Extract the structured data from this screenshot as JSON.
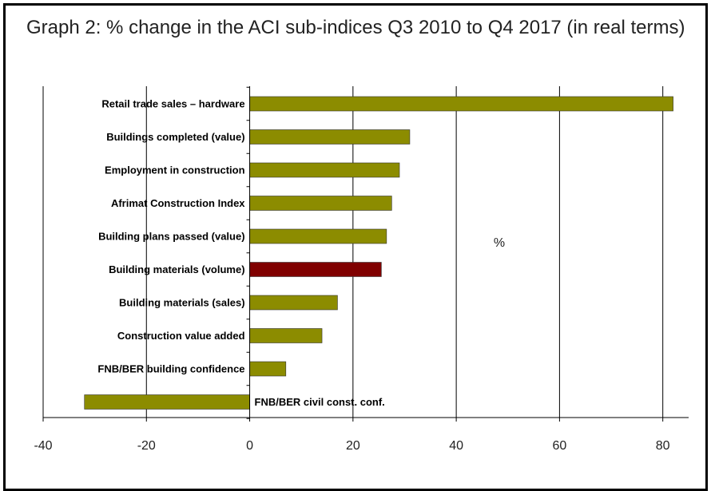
{
  "chart_data": {
    "type": "bar",
    "orientation": "horizontal",
    "title": "Graph 2: % change in the ACI sub-indices Q3 2010 to Q4 2017 (in real terms)",
    "unit_label": "%",
    "categories": [
      "Retail trade sales – hardware",
      "Buildings completed  (value)",
      "Employment in construction",
      "Afrimat Construction Index",
      "Building plans passed (value)",
      "Building materials (volume)",
      "Building materials (sales)",
      "Construction value added",
      "FNB/BER building confidence",
      "FNB/BER civil const. conf."
    ],
    "values": [
      82,
      31,
      29,
      27.5,
      26.5,
      25.5,
      17,
      14,
      7,
      -32
    ],
    "highlight_index": 5,
    "colors": {
      "bar": "#8c8c00",
      "highlight": "#800000",
      "grid": "#000000"
    },
    "xlim": [
      -40,
      85
    ],
    "xticks": [
      -40,
      -20,
      0,
      20,
      40,
      60,
      80
    ],
    "grid": true,
    "legend": false
  }
}
